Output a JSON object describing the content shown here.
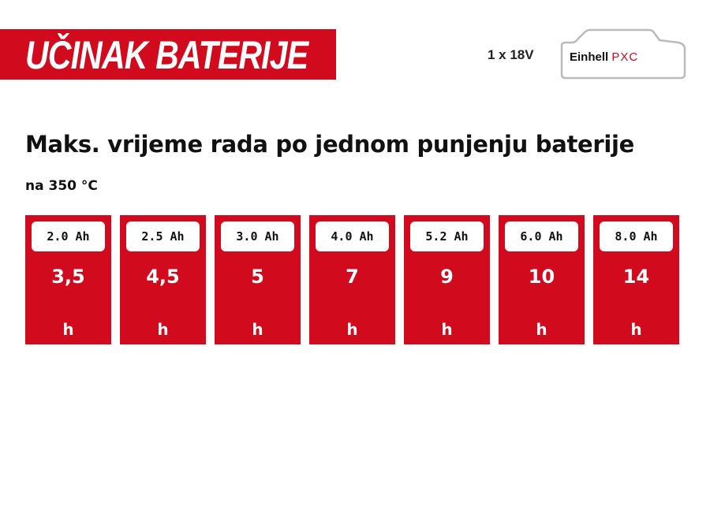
{
  "header": {
    "title": "UČINAK BATERIJE",
    "voltage": "1 x 18V",
    "logo_brand": "Einhell",
    "logo_suffix": "PXC",
    "accent_color": "#d20a1e"
  },
  "main": {
    "heading": "Maks. vrijeme rada po jednom punjenju baterije",
    "subheading": "na 350 °C",
    "cards": [
      {
        "capacity": "2.0 Ah",
        "runtime": "3,5",
        "unit": "h"
      },
      {
        "capacity": "2.5 Ah",
        "runtime": "4,5",
        "unit": "h"
      },
      {
        "capacity": "3.0 Ah",
        "runtime": "5",
        "unit": "h"
      },
      {
        "capacity": "4.0 Ah",
        "runtime": "7",
        "unit": "h"
      },
      {
        "capacity": "5.2 Ah",
        "runtime": "9",
        "unit": "h"
      },
      {
        "capacity": "6.0 Ah",
        "runtime": "10",
        "unit": "h"
      },
      {
        "capacity": "8.0 Ah",
        "runtime": "14",
        "unit": "h"
      }
    ]
  }
}
